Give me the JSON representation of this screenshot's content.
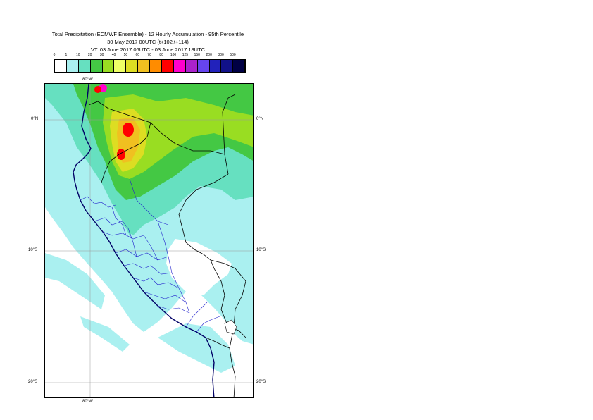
{
  "title": {
    "line1": "Total Precipitation (ECMWF Ensemble) - 12 Hourly Accumulation - 95th Percentile",
    "line2": "30 May 2017 00UTC (t+102,t+114)",
    "line3": "VT: 03 June 2017 06UTC - 03 June 2017 18UTC"
  },
  "legend": {
    "ticks": [
      "0",
      "1",
      "10",
      "20",
      "30",
      "40",
      "50",
      "60",
      "70",
      "80",
      "100",
      "125",
      "150",
      "200",
      "300",
      "500"
    ],
    "colors": [
      "#ffffff",
      "#aaf0f0",
      "#66e0c0",
      "#44c844",
      "#99dd22",
      "#eeff66",
      "#dddd22",
      "#f0c020",
      "#ff8c00",
      "#ff0000",
      "#ff00cc",
      "#aa22cc",
      "#6644ee",
      "#2222bb",
      "#111188",
      "#000044"
    ]
  },
  "axes": {
    "top_lon": "80°W",
    "bottom_lon": "80°W",
    "left_lats": [
      "0°N",
      "10°S",
      "20°S"
    ],
    "right_lats": [
      "0°N",
      "10°S",
      "20°S"
    ]
  },
  "map": {
    "region": "Peru, Ecuador and surrounding area",
    "colors": {
      "ocean": "#ffffff",
      "light": "#aaf0f0",
      "teal": "#66e0c0",
      "green": "#44c844",
      "lime": "#99dd22",
      "yellow": "#dddd22",
      "orange": "#f0c020",
      "red": "#ff0000",
      "magenta": "#ff00cc",
      "border_country": "#000000",
      "border_region": "#2222cc",
      "grid": "#999999"
    }
  }
}
